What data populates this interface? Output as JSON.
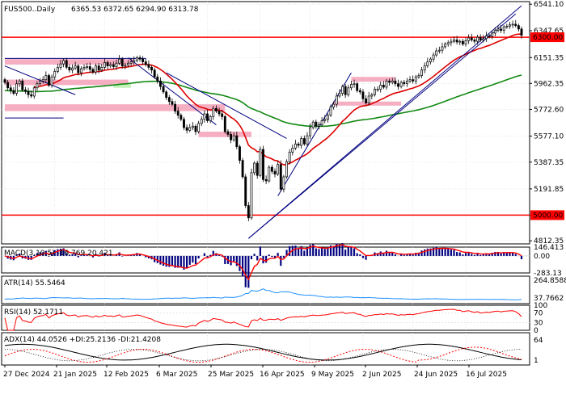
{
  "colors": {
    "background": "#ffffff",
    "border": "#000000",
    "grid": "#d8d8d8",
    "candle": "#000000",
    "resistance": "#ff0000",
    "ma_red": "#dd0000",
    "ma_green": "#118811",
    "channel": "#000080",
    "zone": "#f4a0b8",
    "zone_green": "#b8f0b0",
    "macd_hist": "#000080",
    "macd_signal": "#ff0000",
    "atr": "#1e90ff",
    "rsi": "#ff0000",
    "adx_main": "#000000",
    "adx_plus": "#ff0000",
    "adx_minus": "#000000"
  },
  "chart_data": [
    {
      "type": "candlestick",
      "title": "FUS500..Daily",
      "ohlc_header": "6365.53 6372.65 6294.90 6313.78",
      "x_ticks": [
        "27 Dec 2024",
        "21 Jan 2025",
        "12 Feb 2025",
        "6 Mar 2025",
        "25 Mar 2025",
        "16 Apr 2025",
        "9 May 2025",
        "2 Jun 2025",
        "24 Jun 2025",
        "16 Jul 2025"
      ],
      "y_ticks": [
        "6541.10",
        "6347.65",
        "6151.35",
        "5962.35",
        "5772.60",
        "5577.10",
        "5387.35",
        "5191.85",
        "5002.10",
        "4812.35"
      ],
      "ylim": [
        4790,
        6560
      ],
      "close": [
        5970,
        5930,
        5910,
        5890,
        5960,
        5980,
        5915,
        5905,
        5880,
        5870,
        5930,
        5960,
        5980,
        5990,
        6020,
        5950,
        6010,
        6050,
        6080,
        6105,
        6130,
        6080,
        6060,
        6075,
        6090,
        6040,
        6070,
        6080,
        6085,
        6065,
        6045,
        6090,
        6060,
        6080,
        6115,
        6090,
        6100,
        6085,
        6110,
        6140,
        6090,
        6095,
        6110,
        6120,
        6130,
        6150,
        6140,
        6120,
        6100,
        6080,
        6060,
        6010,
        5980,
        5940,
        5900,
        5860,
        5830,
        5810,
        5760,
        5730,
        5700,
        5640,
        5620,
        5640,
        5650,
        5610,
        5670,
        5700,
        5740,
        5690,
        5720,
        5780,
        5760,
        5740,
        5720,
        5610,
        5590,
        5550,
        5580,
        5500,
        5400,
        5280,
        5070,
        4980,
        5310,
        5380,
        5290,
        5480,
        5260,
        5250,
        5350,
        5320,
        5300,
        5370,
        5190,
        5280,
        5390,
        5460,
        5490,
        5520,
        5510,
        5560,
        5520,
        5580,
        5640,
        5680,
        5650,
        5660,
        5690,
        5700,
        5730,
        5790,
        5810,
        5870,
        5890,
        5940,
        5880,
        5930,
        5955,
        5960,
        5910,
        5900,
        5850,
        5820,
        5870,
        5880,
        5920,
        5920,
        5950,
        5935,
        5980,
        5970,
        5980,
        5960,
        5940,
        5970,
        5960,
        5980,
        5990,
        5980,
        6010,
        6020,
        6060,
        6090,
        6120,
        6140,
        6170,
        6200,
        6205,
        6230,
        6250,
        6260,
        6270,
        6280,
        6265,
        6270,
        6250,
        6275,
        6295,
        6280,
        6270,
        6300,
        6280,
        6290,
        6310,
        6305,
        6330,
        6350,
        6360,
        6350,
        6375,
        6380,
        6390,
        6395,
        6385,
        6360,
        6313.78
      ],
      "resistance_levels": [
        "6300.00",
        "5000.00"
      ],
      "annotations": [
        "6300.00",
        "5000.00"
      ]
    },
    {
      "type": "macd",
      "label": "MACD(3,10,5)",
      "values": [
        "-16.769",
        "20.421"
      ],
      "y_ticks": [
        "146.413",
        "0.00",
        "-283.13"
      ]
    },
    {
      "type": "line",
      "label": "ATR(14)",
      "value": "55.5464",
      "y_ticks": [
        "264.8588",
        "37.7662"
      ]
    },
    {
      "type": "line",
      "label": "RSI(14)",
      "value": "52.1711",
      "y_ticks": [
        "100",
        "70",
        "30",
        "0"
      ]
    },
    {
      "type": "line",
      "label": "ADX(14)",
      "values": [
        "44.0526",
        "+DI:25.2136",
        "-DI:21.4208"
      ],
      "y_ticks": [
        "64",
        "1"
      ]
    }
  ]
}
